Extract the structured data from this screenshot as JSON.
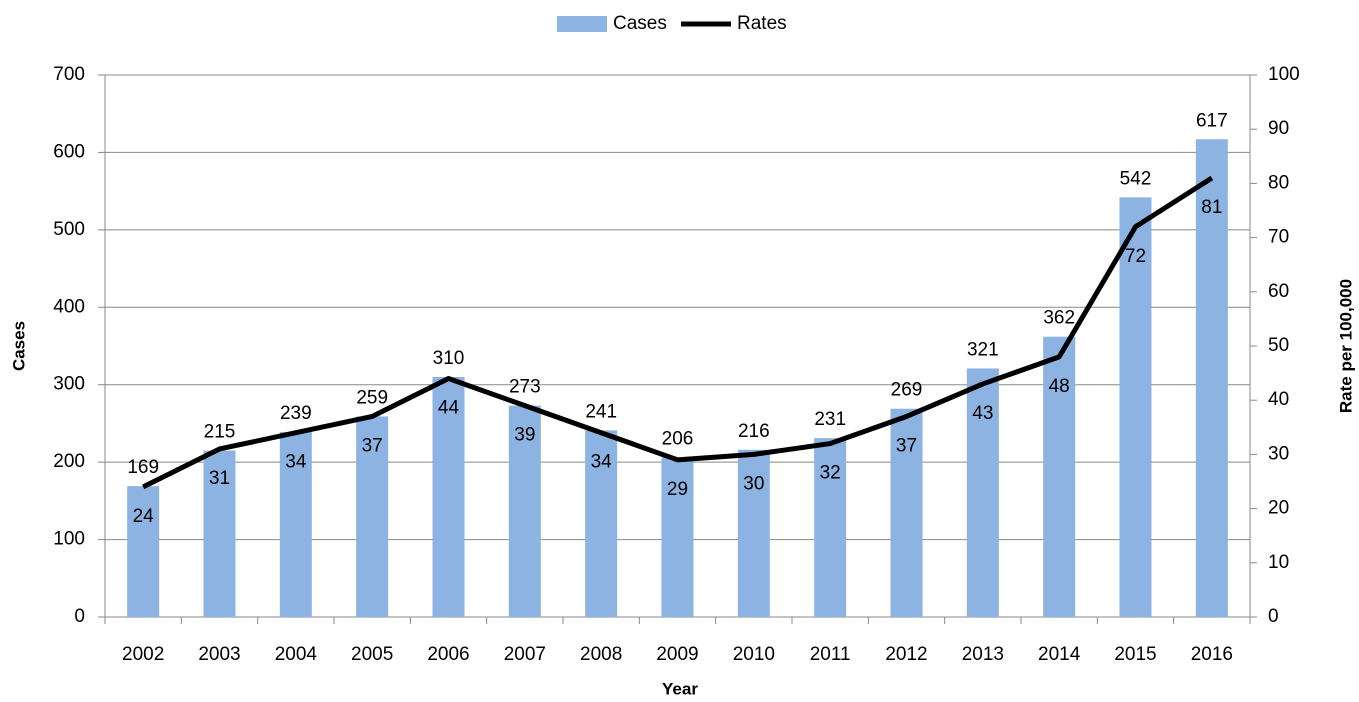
{
  "chart_data": {
    "type": "combo",
    "x_label": "Year",
    "y_label": "Cases",
    "y2_label": "Rate per 100,000",
    "categories": [
      "2002",
      "2003",
      "2004",
      "2005",
      "2006",
      "2007",
      "2008",
      "2009",
      "2010",
      "2011",
      "2012",
      "2013",
      "2014",
      "2015",
      "2016"
    ],
    "series": [
      {
        "name": "Cases",
        "type": "bar",
        "color": "#8db3e2",
        "values": [
          169,
          215,
          239,
          259,
          310,
          273,
          241,
          206,
          216,
          231,
          269,
          321,
          362,
          542,
          617
        ]
      },
      {
        "name": "Rates",
        "type": "line",
        "axis": "y2",
        "color": "#000000",
        "values": [
          24,
          31,
          34,
          37,
          44,
          39,
          34,
          29,
          30,
          32,
          37,
          43,
          48,
          72,
          81
        ]
      }
    ],
    "ylim": [
      0,
      700
    ],
    "yticks": [
      0,
      100,
      200,
      300,
      400,
      500,
      600,
      700
    ],
    "y2lim": [
      0,
      100
    ],
    "y2ticks": [
      0,
      10,
      20,
      30,
      40,
      50,
      60,
      70,
      80,
      90,
      100
    ],
    "grid": true,
    "legend": "top"
  }
}
